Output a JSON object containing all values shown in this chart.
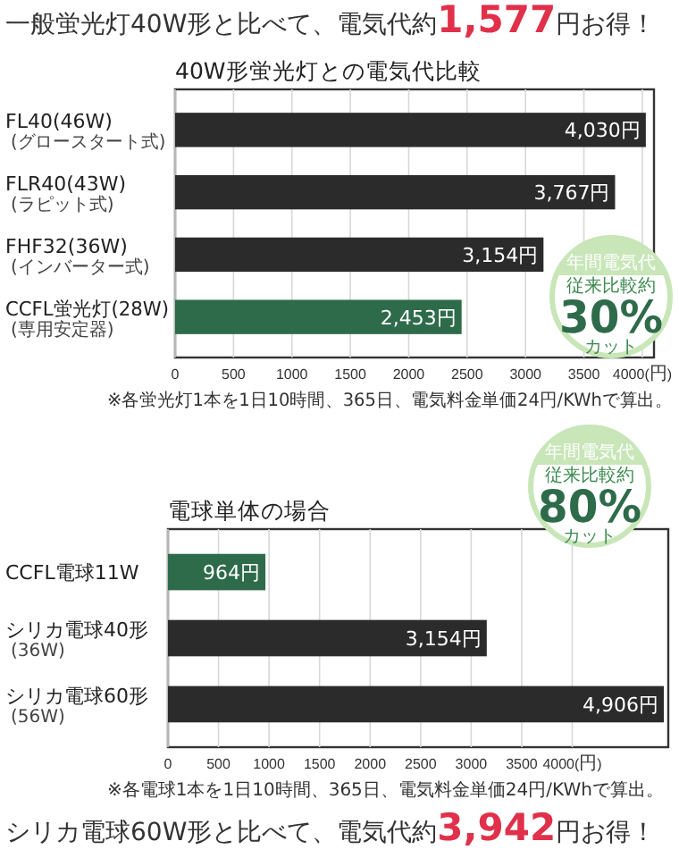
{
  "chart_data": [
    {
      "type": "bar",
      "orientation": "horizontal",
      "title": "一般蛍光灯40W形と比べて、電気代約**1,577**円お得！",
      "subtitle": "40W形蛍光灯との電気代比較",
      "categories": [
        "FL40(46W)\n(グロースタート式)",
        "FLR40(43W)\n(ラピット式)",
        "FHF32(36W)\n(インバーター式)",
        "CCFL蛍光灯(28W)\n(専用安定器)"
      ],
      "values": [
        4030,
        3767,
        3154,
        2453
      ],
      "colors": [
        "#2b2b2b",
        "#2b2b2b",
        "#2b2b2b",
        "#2e6b4a"
      ],
      "value_labels": [
        "4,030円",
        "3,767円",
        "3,154円",
        "2,453円"
      ],
      "xlim": [
        0,
        4100
      ],
      "xticks": [
        0,
        500,
        1000,
        1500,
        2000,
        2500,
        3000,
        3500,
        {
          "value": 4000,
          "label": "4000(円)"
        }
      ],
      "grid": "x",
      "annotations": [
        "※各蛍光灯1本を1日10時間、365日、電気料金単価24円/KWhで算出。",
        "年間電気代",
        "従来比較約",
        "30%",
        "カット"
      ]
    },
    {
      "type": "bar",
      "orientation": "horizontal",
      "title": "電球単体の場合",
      "categories": [
        "CCFL電球11W",
        "シリカ電球40形\n(36W)",
        "シリカ電球60形\n(56W)"
      ],
      "values": [
        964,
        3154,
        4906
      ],
      "colors": [
        "#2e6b4a",
        "#2b2b2b",
        "#2b2b2b"
      ],
      "value_labels": [
        "964円",
        "3,154円",
        "4,906円"
      ],
      "xlim": [
        0,
        4950
      ],
      "xticks": [
        0,
        500,
        1000,
        1500,
        2000,
        2500,
        3000,
        3500,
        {
          "value": 4000,
          "label": "4000(円)"
        }
      ],
      "grid": "x",
      "annotations": [
        "※各電球1本を1日10時間、365日、電気料金単価24円/KWhで算出。",
        "年間電気代",
        "従来比較約",
        "80%",
        "カット",
        "シリカ電球60W形と比べて、電気代約**3,942**円お得！"
      ]
    }
  ]
}
